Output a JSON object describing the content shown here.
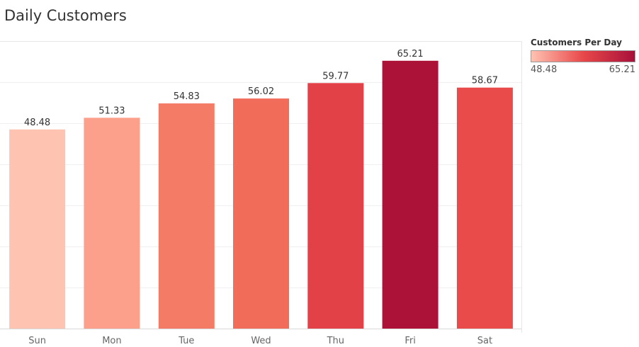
{
  "chart_data": {
    "type": "bar",
    "title": "Daily Customers",
    "categories": [
      "Sun",
      "Mon",
      "Tue",
      "Wed",
      "Thu",
      "Fri",
      "Sat"
    ],
    "values": [
      48.48,
      51.33,
      54.83,
      56.02,
      59.77,
      65.21,
      58.67
    ],
    "value_labels": [
      "48.48",
      "51.33",
      "54.83",
      "56.02",
      "59.77",
      "65.21",
      "58.67"
    ],
    "colors": [
      "#ffc3b2",
      "#fca08b",
      "#f47c66",
      "#f26c5a",
      "#e34148",
      "#ac1238",
      "#e84b4a"
    ],
    "ylim": [
      0,
      70
    ],
    "grid": true,
    "legend": {
      "title": "Customers Per Day",
      "min_label": "48.48",
      "max_label": "65.21",
      "placement": "top-right",
      "gradient": [
        "#ffc3b2",
        "#e8484a",
        "#a8103a"
      ]
    }
  }
}
